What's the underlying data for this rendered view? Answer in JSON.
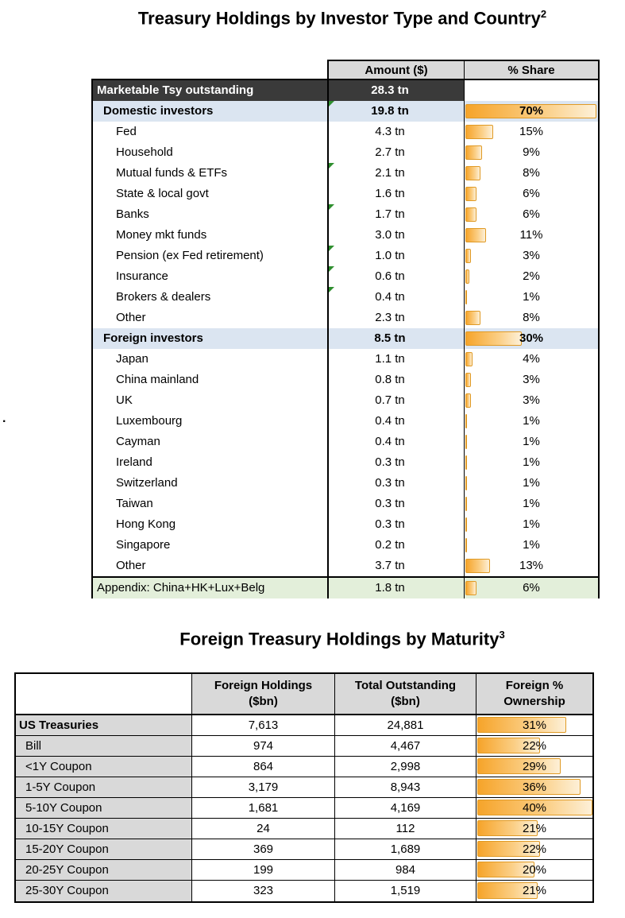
{
  "stray_mark": ".",
  "colors": {
    "bar_fill_start": "#F6A42A",
    "bar_fill_end": "#FDF0D8",
    "bar_border": "#E09A25",
    "column_header_gray": "#D9D9D9",
    "total_row_bg": "#3A3A3A",
    "group_row_bg": "#DBE5F1",
    "appendix_row_bg": "#E3EFDA",
    "flag_green": "#2F8F2F"
  },
  "chart_data": [
    {
      "type": "table",
      "title": "Treasury Holdings by Investor Type and Country",
      "title_footnote": "2",
      "columns": [
        "",
        "Amount ($)",
        "% Share"
      ],
      "bar_scale_max": 70,
      "rows": [
        {
          "label": "Marketable Tsy outstanding",
          "amount": "28.3 tn",
          "share": null,
          "share_label": "",
          "type": "total"
        },
        {
          "label": "Domestic investors",
          "amount": "19.8 tn",
          "share": 70,
          "share_label": "70%",
          "type": "group",
          "flag": true
        },
        {
          "label": "Fed",
          "amount": "4.3 tn",
          "share": 15,
          "share_label": "15%",
          "type": "item"
        },
        {
          "label": "Household",
          "amount": "2.7 tn",
          "share": 9,
          "share_label": "9%",
          "type": "item"
        },
        {
          "label": "Mutual funds & ETFs",
          "amount": "2.1 tn",
          "share": 8,
          "share_label": "8%",
          "type": "item",
          "flag": true
        },
        {
          "label": "State & local govt",
          "amount": "1.6 tn",
          "share": 6,
          "share_label": "6%",
          "type": "item"
        },
        {
          "label": "Banks",
          "amount": "1.7 tn",
          "share": 6,
          "share_label": "6%",
          "type": "item",
          "flag": true
        },
        {
          "label": "Money mkt funds",
          "amount": "3.0 tn",
          "share": 11,
          "share_label": "11%",
          "type": "item"
        },
        {
          "label": "Pension (ex Fed retirement)",
          "amount": "1.0 tn",
          "share": 3,
          "share_label": "3%",
          "type": "item",
          "flag": true
        },
        {
          "label": "Insurance",
          "amount": "0.6 tn",
          "share": 2,
          "share_label": "2%",
          "type": "item",
          "flag": true
        },
        {
          "label": "Brokers & dealers",
          "amount": "0.4 tn",
          "share": 1,
          "share_label": "1%",
          "type": "item",
          "flag": true
        },
        {
          "label": "Other",
          "amount": "2.3 tn",
          "share": 8,
          "share_label": "8%",
          "type": "item"
        },
        {
          "label": "Foreign investors",
          "amount": "8.5 tn",
          "share": 30,
          "share_label": "30%",
          "type": "group"
        },
        {
          "label": "Japan",
          "amount": "1.1 tn",
          "share": 4,
          "share_label": "4%",
          "type": "item"
        },
        {
          "label": "China mainland",
          "amount": "0.8 tn",
          "share": 3,
          "share_label": "3%",
          "type": "item"
        },
        {
          "label": "UK",
          "amount": "0.7 tn",
          "share": 3,
          "share_label": "3%",
          "type": "item"
        },
        {
          "label": "Luxembourg",
          "amount": "0.4 tn",
          "share": 1,
          "share_label": "1%",
          "type": "item"
        },
        {
          "label": "Cayman",
          "amount": "0.4 tn",
          "share": 1,
          "share_label": "1%",
          "type": "item"
        },
        {
          "label": "Ireland",
          "amount": "0.3 tn",
          "share": 1,
          "share_label": "1%",
          "type": "item"
        },
        {
          "label": "Switzerland",
          "amount": "0.3 tn",
          "share": 1,
          "share_label": "1%",
          "type": "item"
        },
        {
          "label": "Taiwan",
          "amount": "0.3 tn",
          "share": 1,
          "share_label": "1%",
          "type": "item"
        },
        {
          "label": "Hong Kong",
          "amount": "0.3 tn",
          "share": 1,
          "share_label": "1%",
          "type": "item"
        },
        {
          "label": "Singapore",
          "amount": "0.2 tn",
          "share": 1,
          "share_label": "1%",
          "type": "item"
        },
        {
          "label": "Other",
          "amount": "3.7 tn",
          "share": 13,
          "share_label": "13%",
          "type": "item"
        },
        {
          "label": "Appendix: China+HK+Lux+Belg",
          "amount": "1.8 tn",
          "share": 6,
          "share_label": "6%",
          "type": "appendix"
        }
      ]
    },
    {
      "type": "table",
      "title": "Foreign Treasury Holdings by Maturity",
      "title_footnote": "3",
      "header_lines": [
        [
          "Foreign Holdings",
          "($bn)"
        ],
        [
          "Total Outstanding",
          "($bn)"
        ],
        [
          "Foreign %",
          "Ownership"
        ]
      ],
      "bar_scale_max": 40,
      "rows": [
        {
          "label": "US Treasuries",
          "foreign": "7,613",
          "total": "24,881",
          "pct": 31,
          "pct_label": "31%",
          "type": "total"
        },
        {
          "label": "Bill",
          "foreign": "974",
          "total": "4,467",
          "pct": 22,
          "pct_label": "22%",
          "type": "item"
        },
        {
          "label": "<1Y Coupon",
          "foreign": "864",
          "total": "2,998",
          "pct": 29,
          "pct_label": "29%",
          "type": "item"
        },
        {
          "label": "1-5Y Coupon",
          "foreign": "3,179",
          "total": "8,943",
          "pct": 36,
          "pct_label": "36%",
          "type": "item"
        },
        {
          "label": "5-10Y Coupon",
          "foreign": "1,681",
          "total": "4,169",
          "pct": 40,
          "pct_label": "40%",
          "type": "item"
        },
        {
          "label": "10-15Y Coupon",
          "foreign": "24",
          "total": "112",
          "pct": 21,
          "pct_label": "21%",
          "type": "item"
        },
        {
          "label": "15-20Y Coupon",
          "foreign": "369",
          "total": "1,689",
          "pct": 22,
          "pct_label": "22%",
          "type": "item"
        },
        {
          "label": "20-25Y Coupon",
          "foreign": "199",
          "total": "984",
          "pct": 20,
          "pct_label": "20%",
          "type": "item"
        },
        {
          "label": "25-30Y Coupon",
          "foreign": "323",
          "total": "1,519",
          "pct": 21,
          "pct_label": "21%",
          "type": "item"
        }
      ]
    }
  ]
}
